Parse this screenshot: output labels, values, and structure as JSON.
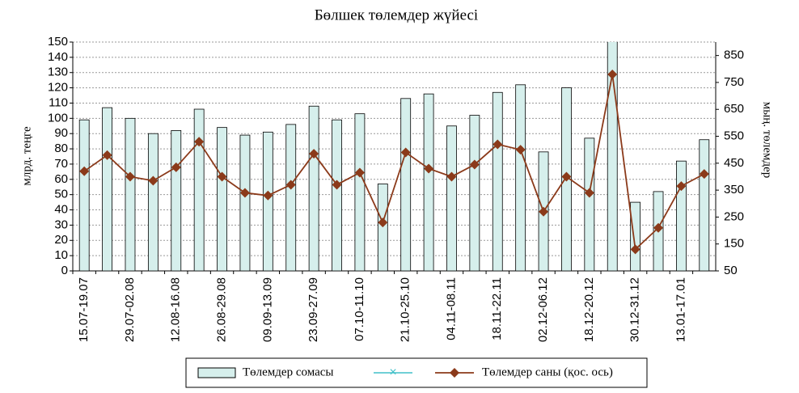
{
  "chart_data": {
    "type": "bar",
    "title": "Бөлшек  төлемдер жүйесі",
    "ylabel": "млрд. теңге",
    "y2label": "мың. төлемдер",
    "categories": [
      "15.07-19.07",
      null,
      "29.07-02.08",
      null,
      "12.08-16.08",
      null,
      "26.08-29.08",
      null,
      "09.09-13.09",
      null,
      "23.09-27.09",
      null,
      "07.10-11.10",
      null,
      "21.10-25.10",
      null,
      "04.11-08.11",
      null,
      "18.11-22.11",
      null,
      "02.12-06.12",
      null,
      "18.12-20.12",
      null,
      "30.12-31.12",
      null,
      "13.01-17.01",
      null
    ],
    "series": [
      {
        "name": "Төлемдер сомасы",
        "type": "bar",
        "color": "#d6efec",
        "values": [
          99,
          107,
          100,
          90,
          92,
          106,
          94,
          89,
          91,
          96,
          108,
          99,
          103,
          57,
          113,
          116,
          95,
          102,
          117,
          122,
          78,
          120,
          87,
          158,
          45,
          52,
          72,
          86
        ]
      },
      {
        "name": "Төлемдер саны (қос. ось)",
        "type": "line",
        "axis": "y2",
        "color": "#8b3a1a",
        "values": [
          420,
          480,
          400,
          385,
          435,
          530,
          400,
          340,
          330,
          370,
          485,
          370,
          415,
          230,
          490,
          430,
          400,
          445,
          520,
          500,
          270,
          400,
          340,
          780,
          130,
          210,
          365,
          410
        ]
      }
    ],
    "ylim": [
      0,
      150
    ],
    "yticks": [
      0,
      10,
      20,
      30,
      40,
      50,
      60,
      70,
      80,
      90,
      100,
      110,
      120,
      130,
      140,
      150
    ],
    "y2lim": [
      50,
      900
    ],
    "y2ticks": [
      50,
      150,
      250,
      350,
      450,
      550,
      650,
      750,
      850
    ],
    "grid": true,
    "legend": "bottom"
  }
}
